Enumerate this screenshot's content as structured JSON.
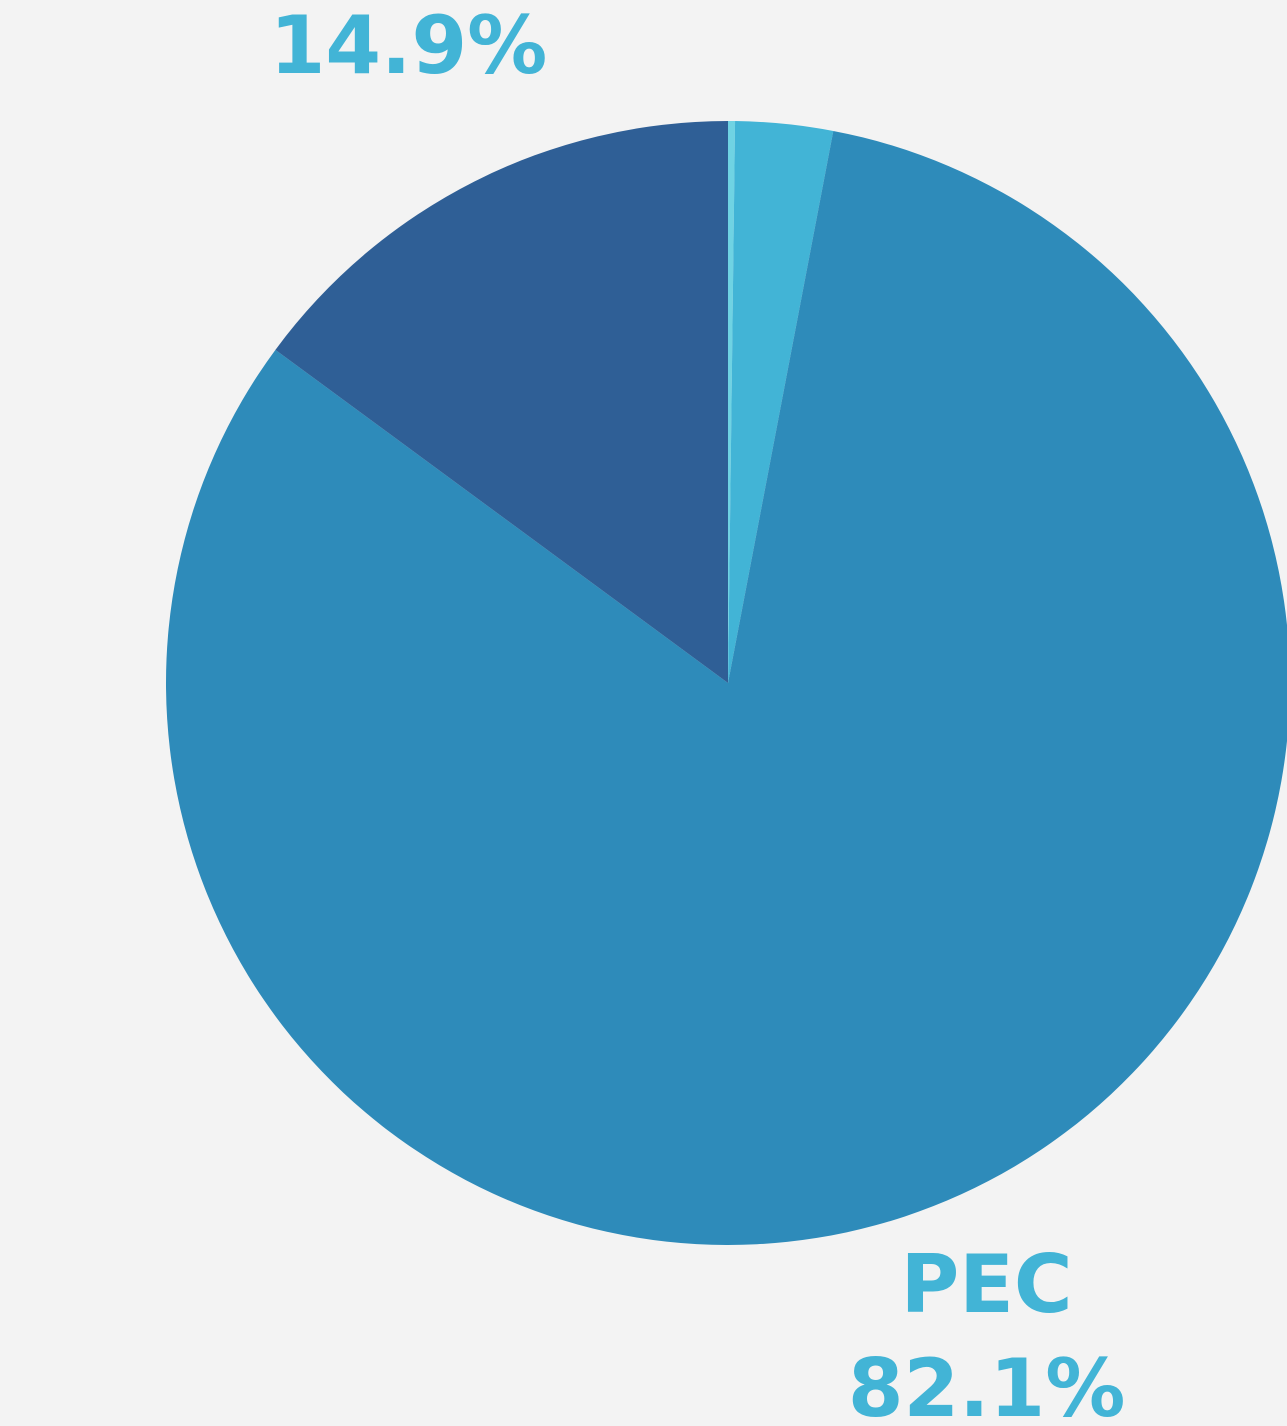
{
  "chart_data": {
    "type": "pie",
    "categories": [
      null,
      null,
      "PEC",
      null
    ],
    "values": [
      0.2,
      2.8,
      82.1,
      14.9
    ],
    "value_labels": [
      null,
      null,
      "82.1%",
      "14.9%"
    ],
    "colors": [
      "#6fd3e3",
      "#42b4d6",
      "#2e8bba",
      "#2f5f96"
    ]
  }
}
